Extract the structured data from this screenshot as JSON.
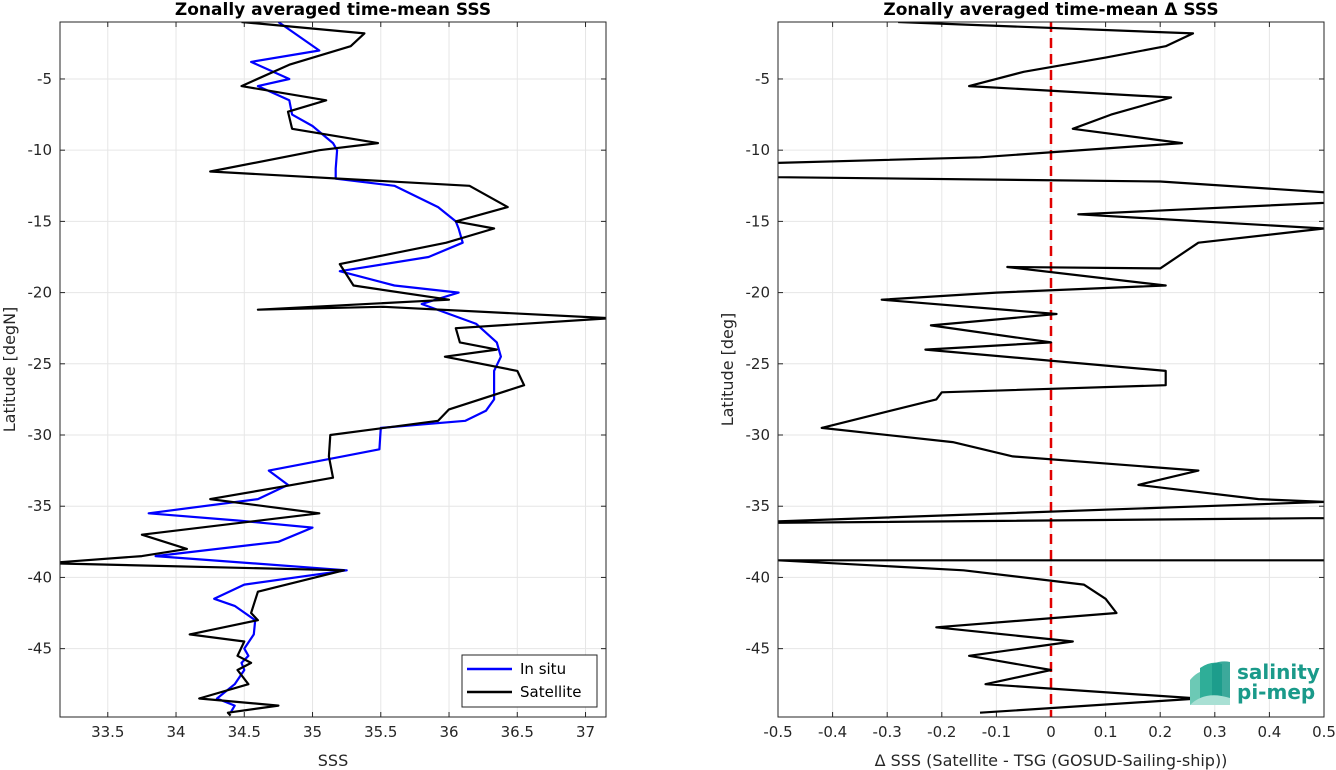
{
  "chart_data": [
    {
      "type": "line",
      "title": "Zonally averaged time-mean SSS",
      "xlabel": "SSS",
      "ylabel": "Latitude [degN]",
      "xlim": [
        33.15,
        37.15
      ],
      "ylim": [
        -49.8,
        -1
      ],
      "xticks": [
        33.5,
        34,
        34.5,
        35,
        35.5,
        36,
        36.5,
        37
      ],
      "xtick_labels": [
        "33.5",
        "34",
        "34.5",
        "35",
        "35.5",
        "36",
        "36.5",
        "37"
      ],
      "yticks": [
        -45,
        -40,
        -35,
        -30,
        -25,
        -20,
        -15,
        -10,
        -5
      ],
      "ytick_labels": [
        "-45",
        "-40",
        "-35",
        "-30",
        "-25",
        "-20",
        "-15",
        "-10",
        "-5"
      ],
      "grid": true,
      "legend_position": "bottom-right",
      "series": [
        {
          "name": "In situ",
          "color": "#0000ff",
          "x": [
            34.75,
            35.05,
            34.55,
            34.83,
            34.6,
            34.83,
            34.85,
            35.0,
            35.15,
            35.18,
            35.17,
            35.17,
            35.6,
            35.92,
            36.05,
            36.07,
            36.1,
            35.85,
            35.2,
            35.6,
            36.07,
            35.8,
            36.2,
            36.35,
            36.38,
            36.33,
            36.33,
            36.33,
            36.27,
            36.12,
            35.5,
            35.49,
            35.22,
            34.68,
            34.82,
            34.6,
            33.8,
            34.45,
            35.0,
            34.75,
            33.85,
            35.25,
            34.5,
            34.28,
            34.43,
            34.58,
            34.57,
            34.5,
            34.53,
            34.48,
            34.5,
            34.43,
            34.3,
            34.43,
            34.4
          ],
          "y": [
            -1.0,
            -3.0,
            -3.8,
            -5.0,
            -5.5,
            -6.5,
            -7.5,
            -8.3,
            -9.5,
            -10.0,
            -11.3,
            -12.0,
            -12.5,
            -14.0,
            -15.0,
            -15.5,
            -16.5,
            -17.5,
            -18.5,
            -19.5,
            -20.0,
            -20.8,
            -22.2,
            -23.5,
            -24.5,
            -25.5,
            -26.5,
            -27.5,
            -28.3,
            -29.0,
            -29.5,
            -31.0,
            -31.5,
            -32.5,
            -33.5,
            -34.5,
            -35.5,
            -36.0,
            -36.5,
            -37.5,
            -38.5,
            -39.5,
            -40.5,
            -41.5,
            -42.0,
            -43.0,
            -44.0,
            -45.0,
            -45.5,
            -46.0,
            -46.5,
            -47.5,
            -48.5,
            -49.0,
            -49.5
          ]
        },
        {
          "name": "Satellite",
          "color": "#000000",
          "x": [
            34.48,
            35.38,
            35.28,
            34.83,
            34.48,
            35.1,
            34.82,
            34.85,
            35.48,
            35.05,
            34.25,
            36.15,
            36.43,
            36.05,
            36.33,
            35.98,
            35.2,
            35.3,
            36.0,
            34.6,
            35.52,
            37.18,
            36.05,
            36.08,
            36.35,
            35.97,
            36.5,
            36.55,
            36.0,
            35.92,
            35.13,
            35.12,
            35.15,
            34.85,
            34.25,
            35.05,
            33.75,
            34.08,
            33.75,
            33.05,
            35.23,
            34.6,
            34.55,
            34.6,
            34.1,
            34.5,
            34.45,
            34.55,
            34.45,
            34.53,
            34.17,
            34.75,
            34.38,
            34.4
          ],
          "y": [
            -1.0,
            -1.8,
            -2.7,
            -4.0,
            -5.5,
            -6.5,
            -7.3,
            -8.5,
            -9.5,
            -10.0,
            -11.5,
            -12.5,
            -14.0,
            -15.0,
            -15.5,
            -16.5,
            -18.0,
            -19.5,
            -20.5,
            -21.2,
            -21.0,
            -21.8,
            -22.5,
            -23.5,
            -24.0,
            -24.5,
            -25.5,
            -26.5,
            -28.2,
            -29.0,
            -30.0,
            -31.5,
            -33.0,
            -33.5,
            -34.5,
            -35.5,
            -37.0,
            -38.0,
            -38.5,
            -39.0,
            -39.5,
            -41.0,
            -42.5,
            -43.0,
            -44.0,
            -44.5,
            -45.5,
            -46.0,
            -46.5,
            -47.5,
            -48.5,
            -49.0,
            -49.5,
            -49.7
          ]
        }
      ]
    },
    {
      "type": "line",
      "title": "Zonally averaged time-mean Δ SSS",
      "xlabel": "Δ SSS (Satellite - TSG (GOSUD-Sailing-ship))",
      "ylabel": "Latitude [deg]",
      "xlim": [
        -0.5,
        0.5
      ],
      "ylim": [
        -49.8,
        -1
      ],
      "xticks": [
        -0.5,
        -0.4,
        -0.3,
        -0.2,
        -0.1,
        0,
        0.1,
        0.2,
        0.3,
        0.4,
        0.5
      ],
      "xtick_labels": [
        "-0.5",
        "-0.4",
        "-0.3",
        "-0.2",
        "-0.1",
        "0",
        "0.1",
        "0.2",
        "0.3",
        "0.4",
        "0.5"
      ],
      "yticks": [
        -45,
        -40,
        -35,
        -30,
        -25,
        -20,
        -15,
        -10,
        -5
      ],
      "ytick_labels": [
        "-45",
        "-40",
        "-35",
        "-30",
        "-25",
        "-20",
        "-15",
        "-10",
        "-5"
      ],
      "grid": true,
      "zero_line": {
        "x": 0,
        "color": "#e00000",
        "style": "dashed"
      },
      "series": [
        {
          "name": "",
          "color": "#000000",
          "x": [
            -0.28,
            0.26,
            0.21,
            0.1,
            -0.05,
            -0.15,
            0.22,
            0.11,
            0.04,
            0.24,
            -0.13,
            -0.6,
            -0.5,
            0.2,
            0.6,
            0.5,
            0.05,
            0.5,
            0.27,
            0.2,
            -0.08,
            0.21,
            -0.1,
            -0.31,
            0.01,
            -0.22,
            0.0,
            -0.23,
            0.21,
            0.21,
            -0.2,
            -0.21,
            -0.42,
            -0.18,
            -0.07,
            0.27,
            0.16,
            0.38,
            0.5,
            -0.6,
            0.6,
            0.5,
            -0.5,
            -0.16,
            0.06,
            0.1,
            0.12,
            -0.21,
            0.04,
            -0.15,
            0.0,
            -0.12,
            0.27,
            -0.13
          ],
          "y": [
            -1.0,
            -1.8,
            -2.7,
            -3.5,
            -4.5,
            -5.5,
            -6.3,
            -7.5,
            -8.5,
            -9.5,
            -10.5,
            -11.0,
            -11.9,
            -12.2,
            -13.2,
            -13.7,
            -14.5,
            -15.5,
            -16.5,
            -18.3,
            -18.2,
            -19.5,
            -20.0,
            -20.5,
            -21.5,
            -22.3,
            -23.5,
            -24.0,
            -25.5,
            -26.5,
            -27.0,
            -27.5,
            -29.5,
            -30.5,
            -31.5,
            -32.5,
            -33.5,
            -34.5,
            -34.7,
            -36.2,
            -35.8,
            -38.8,
            -38.8,
            -39.5,
            -40.5,
            -41.5,
            -42.5,
            -43.5,
            -44.5,
            -45.5,
            -46.5,
            -47.5,
            -48.5,
            -49.5
          ]
        }
      ]
    }
  ],
  "logo": {
    "line1": "salinity",
    "line2": "pi-mep",
    "color": "#1a9a8a"
  }
}
